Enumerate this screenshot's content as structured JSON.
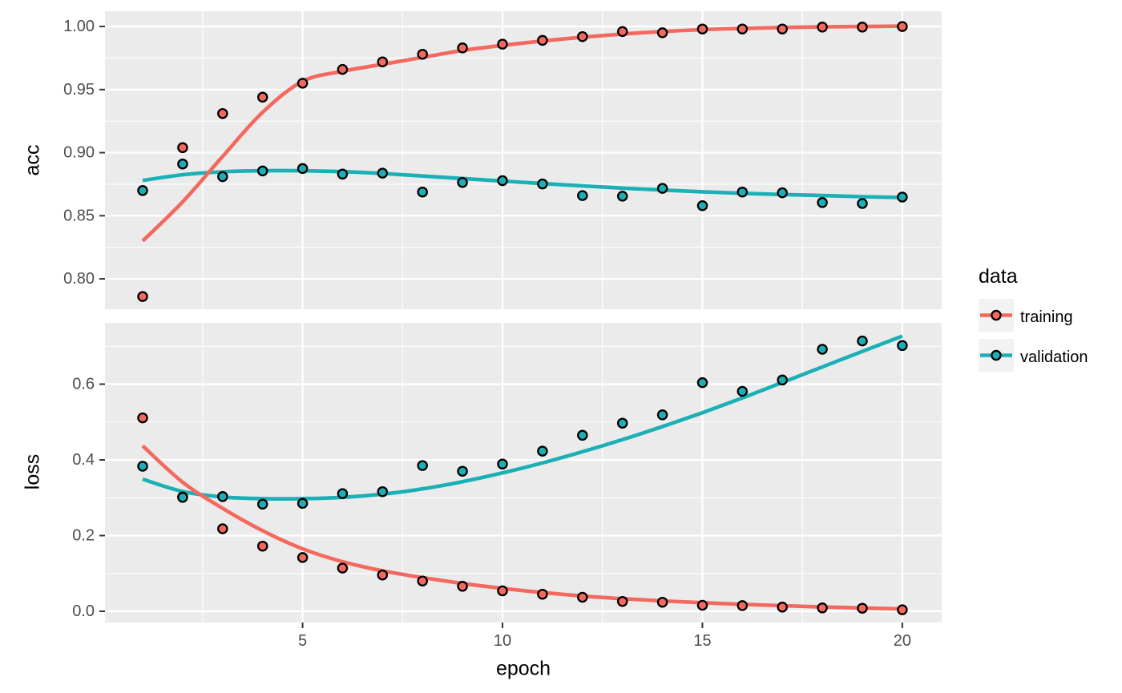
{
  "figure": {
    "colors": {
      "background": "#FFFFFF",
      "panel_bg": "#EBEBEB",
      "grid": "#FFFFFF",
      "tick_mark": "#333333",
      "tick_text": "#4D4D4D",
      "title_text": "#000000",
      "point_stroke": "#000000",
      "legend_key_bg": "#F2F2F2"
    }
  },
  "chart_data": {
    "type": "scatter",
    "x_label": "epoch",
    "x": [
      1,
      2,
      3,
      4,
      5,
      6,
      7,
      8,
      9,
      10,
      11,
      12,
      13,
      14,
      15,
      16,
      17,
      18,
      19,
      20
    ],
    "x_axis": {
      "ticks": [
        5,
        10,
        15,
        20
      ],
      "tick_labels": [
        "5",
        "10",
        "15",
        "20"
      ],
      "minor_ticks": [
        2.5,
        7.5,
        12.5,
        17.5
      ],
      "xlim": [
        0.058,
        20.984
      ]
    },
    "legend": {
      "title": "data",
      "position": "right",
      "entries": [
        "training",
        "validation"
      ]
    },
    "panels": [
      {
        "metric": "acc",
        "ylabel": "acc",
        "ylim": [
          0.7759,
          1.0121
        ],
        "major_ticks": [
          0.8,
          0.85,
          0.9,
          0.95,
          1.0
        ],
        "tick_labels": [
          "0.80",
          "0.85",
          "0.90",
          "0.95",
          "1.00"
        ],
        "minor_ticks": [
          0.825,
          0.875,
          0.925,
          0.975
        ],
        "series": [
          {
            "name": "training",
            "color": "#F3695F",
            "points": [
              0.786,
              0.904,
              0.931,
              0.944,
              0.955,
              0.966,
              0.972,
              0.978,
              0.983,
              0.986,
              0.989,
              0.992,
              0.996,
              0.995,
              0.998,
              0.998,
              0.998,
              0.9995,
              0.9995,
              1.0
            ],
            "loess_fit": [
              0.83,
              0.861,
              0.897,
              0.932,
              0.9565,
              0.9645,
              0.97,
              0.9755,
              0.981,
              0.985,
              0.9885,
              0.9915,
              0.994,
              0.996,
              0.9975,
              0.9985,
              0.9992,
              0.9997,
              1.0,
              1.0003
            ]
          },
          {
            "name": "validation",
            "color": "#1AB0B5",
            "points": [
              0.87,
              0.891,
              0.881,
              0.8855,
              0.8874,
              0.883,
              0.8838,
              0.8688,
              0.8764,
              0.8778,
              0.8752,
              0.866,
              0.8655,
              0.8717,
              0.858,
              0.8688,
              0.8682,
              0.8605,
              0.8597,
              0.8648
            ],
            "loess_fit": [
              0.878,
              0.8825,
              0.8848,
              0.8857,
              0.8857,
              0.885,
              0.8835,
              0.8815,
              0.8795,
              0.8775,
              0.8755,
              0.8737,
              0.8719,
              0.8704,
              0.869,
              0.8678,
              0.8668,
              0.866,
              0.8651,
              0.8645
            ]
          }
        ]
      },
      {
        "metric": "loss",
        "ylabel": "loss",
        "ylim": [
          -0.0296,
          0.7619
        ],
        "major_ticks": [
          0.0,
          0.2,
          0.4,
          0.6
        ],
        "tick_labels": [
          "0.0",
          "0.2",
          "0.4",
          "0.6"
        ],
        "minor_ticks": [
          0.1,
          0.3,
          0.5,
          0.7
        ],
        "series": [
          {
            "name": "training",
            "color": "#F3695F",
            "points": [
              0.511,
              0.302,
              0.218,
              0.172,
              0.142,
              0.114,
              0.096,
              0.08,
              0.066,
              0.054,
              0.045,
              0.037,
              0.026,
              0.024,
              0.016,
              0.015,
              0.011,
              0.009,
              0.008,
              0.004
            ],
            "loess_fit": [
              0.437,
              0.341,
              0.272,
              0.213,
              0.165,
              0.131,
              0.107,
              0.089,
              0.0735,
              0.0605,
              0.0495,
              0.0405,
              0.0332,
              0.0275,
              0.0226,
              0.0184,
              0.0148,
              0.0115,
              0.0088,
              0.0063
            ]
          },
          {
            "name": "validation",
            "color": "#1AB0B5",
            "points": [
              0.383,
              0.301,
              0.303,
              0.283,
              0.285,
              0.311,
              0.316,
              0.385,
              0.37,
              0.389,
              0.423,
              0.465,
              0.497,
              0.519,
              0.604,
              0.581,
              0.611,
              0.692,
              0.714,
              0.702
            ],
            "loess_fit": [
              0.349,
              0.3165,
              0.302,
              0.2975,
              0.2975,
              0.301,
              0.3095,
              0.3235,
              0.3425,
              0.3655,
              0.392,
              0.4215,
              0.4535,
              0.488,
              0.5245,
              0.5635,
              0.6045,
              0.6455,
              0.6865,
              0.727
            ]
          }
        ]
      }
    ]
  }
}
